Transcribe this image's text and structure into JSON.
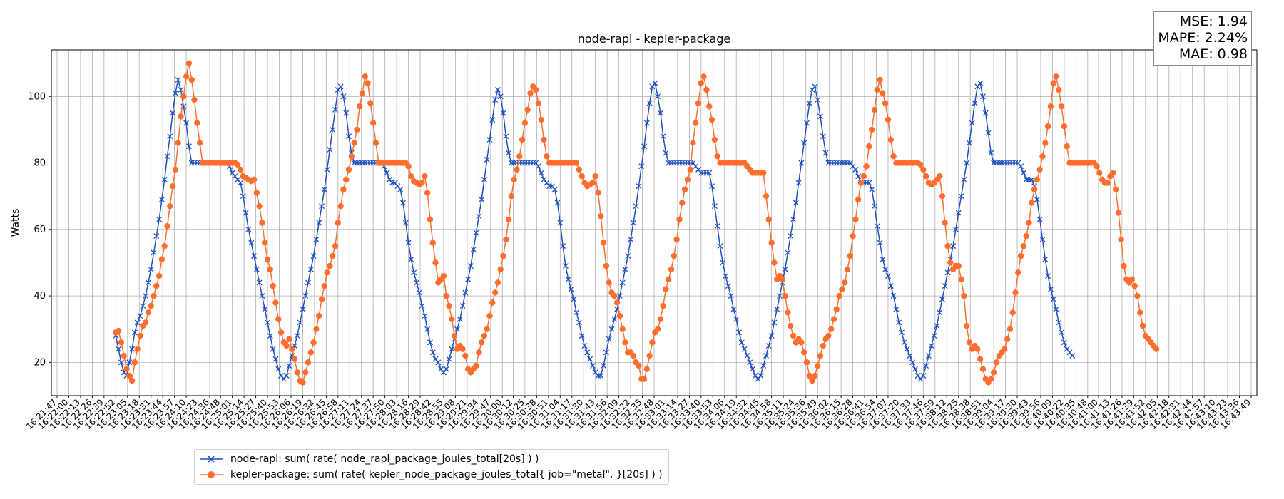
{
  "chart_data": {
    "type": "line",
    "title": "node-rapl - kepler-package",
    "xlabel": "",
    "ylabel": "Watts",
    "ylim": [
      10,
      114
    ],
    "yticks": [
      20,
      40,
      60,
      80,
      100
    ],
    "grid": true,
    "legend_position": "bottom-left",
    "x_ticks": [
      "16:21:47",
      "16:22:00",
      "16:22:13",
      "16:22:26",
      "16:22:39",
      "16:22:52",
      "16:23:05",
      "16:23:18",
      "16:23:31",
      "16:23:44",
      "16:23:57",
      "16:24:10",
      "16:24:23",
      "16:24:36",
      "16:24:48",
      "16:25:01",
      "16:25:14",
      "16:25:27",
      "16:25:40",
      "16:25:53",
      "16:26:06",
      "16:26:19",
      "16:26:32",
      "16:26:45",
      "16:26:58",
      "16:27:11",
      "16:27:24",
      "16:27:37",
      "16:27:50",
      "16:28:03",
      "16:28:16",
      "16:28:29",
      "16:28:42",
      "16:28:55",
      "16:29:08",
      "16:29:21",
      "16:29:34",
      "16:29:47",
      "16:30:00",
      "16:30:12",
      "16:30:25",
      "16:30:38",
      "16:30:51",
      "16:31:04",
      "16:31:17",
      "16:31:30",
      "16:31:43",
      "16:31:56",
      "16:32:09",
      "16:32:22",
      "16:32:35",
      "16:32:48",
      "16:33:01",
      "16:33:14",
      "16:33:27",
      "16:33:40",
      "16:33:53",
      "16:34:06",
      "16:34:19",
      "16:34:32",
      "16:34:45",
      "16:34:58",
      "16:35:11",
      "16:35:24",
      "16:35:36",
      "16:35:49",
      "16:36:02",
      "16:36:15",
      "16:36:28",
      "16:36:41",
      "16:36:54",
      "16:37:07",
      "16:37:20",
      "16:37:33",
      "16:37:46",
      "16:37:59",
      "16:38:12",
      "16:38:25",
      "16:38:38",
      "16:38:51",
      "16:39:04",
      "16:39:17",
      "16:39:30",
      "16:39:43",
      "16:39:56",
      "16:40:09",
      "16:40:22",
      "16:40:35",
      "16:40:48",
      "16:41:00",
      "16:41:13",
      "16:41:26",
      "16:41:39",
      "16:41:52",
      "16:42:05",
      "16:42:18",
      "16:42:31",
      "16:42:44",
      "16:42:57",
      "16:43:10",
      "16:43:23",
      "16:43:36",
      "16:43:49"
    ],
    "x_tick_start": "16:21:47",
    "sample_interval_seconds": 3,
    "series": [
      {
        "name": "node-rapl: sum( rate( node_rapl_package_joules_total[20s] ) )",
        "color": "#1f4fbf",
        "marker": "x",
        "start_time": "16:22:52",
        "values": [
          28,
          24,
          20,
          17,
          16,
          20,
          24,
          29,
          32,
          34,
          37,
          40,
          44,
          48,
          53,
          58,
          63,
          69,
          75,
          82,
          88,
          95,
          101,
          105,
          102,
          97,
          92,
          85,
          80,
          80,
          80,
          80,
          80,
          80,
          80,
          80,
          80,
          80,
          80,
          80,
          80,
          80,
          79,
          77,
          76,
          75,
          74,
          70,
          65,
          60,
          56,
          52,
          48,
          44,
          40,
          36,
          32,
          28,
          24,
          21,
          18,
          16,
          15,
          16,
          19,
          22,
          25,
          28,
          32,
          36,
          40,
          44,
          48,
          52,
          57,
          62,
          67,
          72,
          78,
          84,
          90,
          96,
          102,
          103,
          100,
          95,
          88,
          83,
          80,
          80,
          80,
          80,
          80,
          80,
          80,
          80,
          80,
          80,
          80,
          79,
          77,
          75,
          74,
          74,
          73,
          72,
          68,
          62,
          56,
          51,
          47,
          44,
          41,
          37,
          34,
          30,
          26,
          23,
          21,
          20,
          18,
          17,
          18,
          21,
          24,
          27,
          30,
          33,
          37,
          41,
          45,
          49,
          54,
          59,
          64,
          69,
          75,
          81,
          87,
          93,
          99,
          102,
          100,
          95,
          88,
          83,
          80,
          80,
          80,
          80,
          80,
          80,
          80,
          80,
          80,
          80,
          79,
          77,
          75,
          74,
          73,
          73,
          72,
          68,
          62,
          55,
          49,
          45,
          42,
          39,
          35,
          32,
          28,
          25,
          23,
          21,
          19,
          17,
          16,
          16,
          19,
          23,
          27,
          30,
          33,
          36,
          40,
          44,
          48,
          52,
          57,
          62,
          67,
          73,
          79,
          85,
          92,
          98,
          103,
          104,
          100,
          95,
          88,
          83,
          80,
          80,
          80,
          80,
          80,
          80,
          80,
          80,
          80,
          80,
          79,
          78,
          77,
          77,
          77,
          77,
          73,
          67,
          61,
          55,
          50,
          46,
          43,
          40,
          36,
          33,
          29,
          26,
          24,
          22,
          20,
          18,
          16,
          15,
          16,
          19,
          22,
          25,
          28,
          32,
          36,
          40,
          44,
          48,
          53,
          58,
          63,
          68,
          74,
          80,
          86,
          92,
          98,
          102,
          103,
          99,
          94,
          88,
          83,
          80,
          80,
          80,
          80,
          80,
          80,
          80,
          80,
          80,
          79,
          78,
          76,
          74,
          74,
          74,
          74,
          72,
          67,
          61,
          56,
          51,
          48,
          46,
          43,
          40,
          36,
          32,
          29,
          26,
          24,
          22,
          20,
          18,
          16,
          15,
          16,
          19,
          22,
          25,
          28,
          31,
          35,
          39,
          43,
          47,
          51,
          55,
          60,
          65,
          70,
          75,
          80,
          86,
          92,
          98,
          103,
          104,
          100,
          95,
          89,
          83,
          80,
          80,
          80,
          80,
          80,
          80,
          80,
          80,
          80,
          80,
          79,
          77,
          75,
          75,
          75,
          73,
          69,
          63,
          57,
          51,
          46,
          42,
          39,
          36,
          32,
          29,
          26,
          24,
          23,
          22
        ]
      },
      {
        "name": "kepler-package: sum( rate( kepler_node_package_joules_total{ job=\"metal\", }[20s] ) )",
        "color": "#ff6e2e",
        "marker": "o",
        "start_time": "16:22:52",
        "values": [
          29,
          29.5,
          26,
          22,
          18,
          16,
          14.5,
          20,
          24,
          28,
          31,
          32,
          35,
          37,
          40,
          43,
          46,
          51,
          55,
          61,
          67,
          73,
          78,
          86,
          94,
          100,
          106,
          110,
          105,
          99,
          92,
          86,
          80,
          80,
          80,
          80,
          80,
          80,
          80,
          80,
          80,
          80,
          80,
          80,
          80,
          79.5,
          78,
          76,
          75.5,
          75,
          74.5,
          75,
          71,
          67,
          62,
          56,
          51,
          48,
          43,
          38,
          33,
          29,
          26,
          25,
          27,
          24,
          21,
          17,
          14.5,
          14,
          17,
          20,
          23,
          26,
          30,
          34,
          39,
          43,
          47,
          49,
          52,
          55,
          62,
          67,
          72,
          75,
          78,
          82,
          86,
          90,
          97,
          101,
          106,
          104,
          98,
          92,
          86,
          80,
          80,
          80,
          80,
          80,
          80,
          80,
          80,
          80,
          80,
          80,
          79,
          76,
          74.5,
          74,
          73.5,
          74,
          76,
          71,
          63,
          56,
          50,
          44,
          45,
          46,
          40,
          37,
          33,
          28,
          24,
          25,
          24,
          22,
          18,
          17,
          18,
          19,
          23,
          26,
          28,
          30,
          34,
          38,
          41,
          44,
          48,
          52,
          57,
          63,
          70,
          75,
          78,
          82,
          87,
          92,
          96,
          101,
          103,
          102,
          98,
          93,
          87,
          82,
          80,
          80,
          80,
          80,
          80,
          80,
          80,
          80,
          80,
          80,
          80,
          78,
          76,
          74,
          73,
          73.5,
          74,
          76,
          71,
          64,
          56,
          49,
          44,
          41,
          40,
          38,
          34,
          30,
          26,
          23,
          23,
          22,
          20,
          19,
          15,
          15,
          18,
          22,
          26,
          29,
          30,
          33,
          37,
          42,
          45,
          48,
          52,
          57,
          63,
          68,
          72,
          75,
          78,
          86,
          92,
          98,
          104,
          106,
          102,
          97,
          93,
          87,
          82,
          80,
          80,
          80,
          80,
          80,
          80,
          80,
          80,
          80,
          80,
          79,
          78,
          77,
          77,
          77,
          77,
          77,
          70,
          63,
          56,
          50,
          45,
          46,
          45,
          40,
          35,
          31,
          28,
          26,
          27,
          26,
          23,
          20,
          16,
          14.5,
          16,
          19,
          22,
          25,
          27,
          28,
          30,
          33,
          36,
          40,
          42,
          44,
          48,
          52,
          58,
          63,
          69,
          74,
          76,
          79,
          85,
          90,
          96,
          102,
          105,
          101,
          98,
          93,
          87,
          82,
          80,
          80,
          80,
          80,
          80,
          80,
          80,
          80,
          80,
          79.5,
          78,
          76,
          74,
          73.5,
          74,
          75,
          76,
          70,
          62,
          55,
          50,
          48,
          49,
          49,
          45,
          40,
          31,
          26,
          24,
          25,
          24,
          21,
          18,
          15,
          14,
          15,
          17,
          20,
          22,
          23,
          24,
          27,
          30,
          35,
          41,
          47,
          52,
          55,
          58,
          62,
          68,
          72,
          75,
          78,
          82,
          86,
          91,
          97,
          104,
          106,
          102,
          97,
          91,
          85,
          80,
          80,
          80,
          80,
          80,
          80,
          80,
          80,
          80,
          80,
          79,
          77,
          75,
          74,
          74,
          76,
          77,
          72,
          65,
          57,
          49,
          45,
          44,
          45,
          43,
          40,
          35,
          31,
          28,
          27,
          26,
          25,
          24
        ]
      }
    ]
  },
  "metrics": {
    "mse": "MSE: 1.94",
    "mape": "MAPE: 2.24%",
    "mae": "MAE: 0.98"
  },
  "legend": [
    "node-rapl: sum( rate( node_rapl_package_joules_total[20s] ) )",
    "kepler-package: sum( rate( kepler_node_package_joules_total{ job=\"metal\", }[20s] ) )"
  ]
}
